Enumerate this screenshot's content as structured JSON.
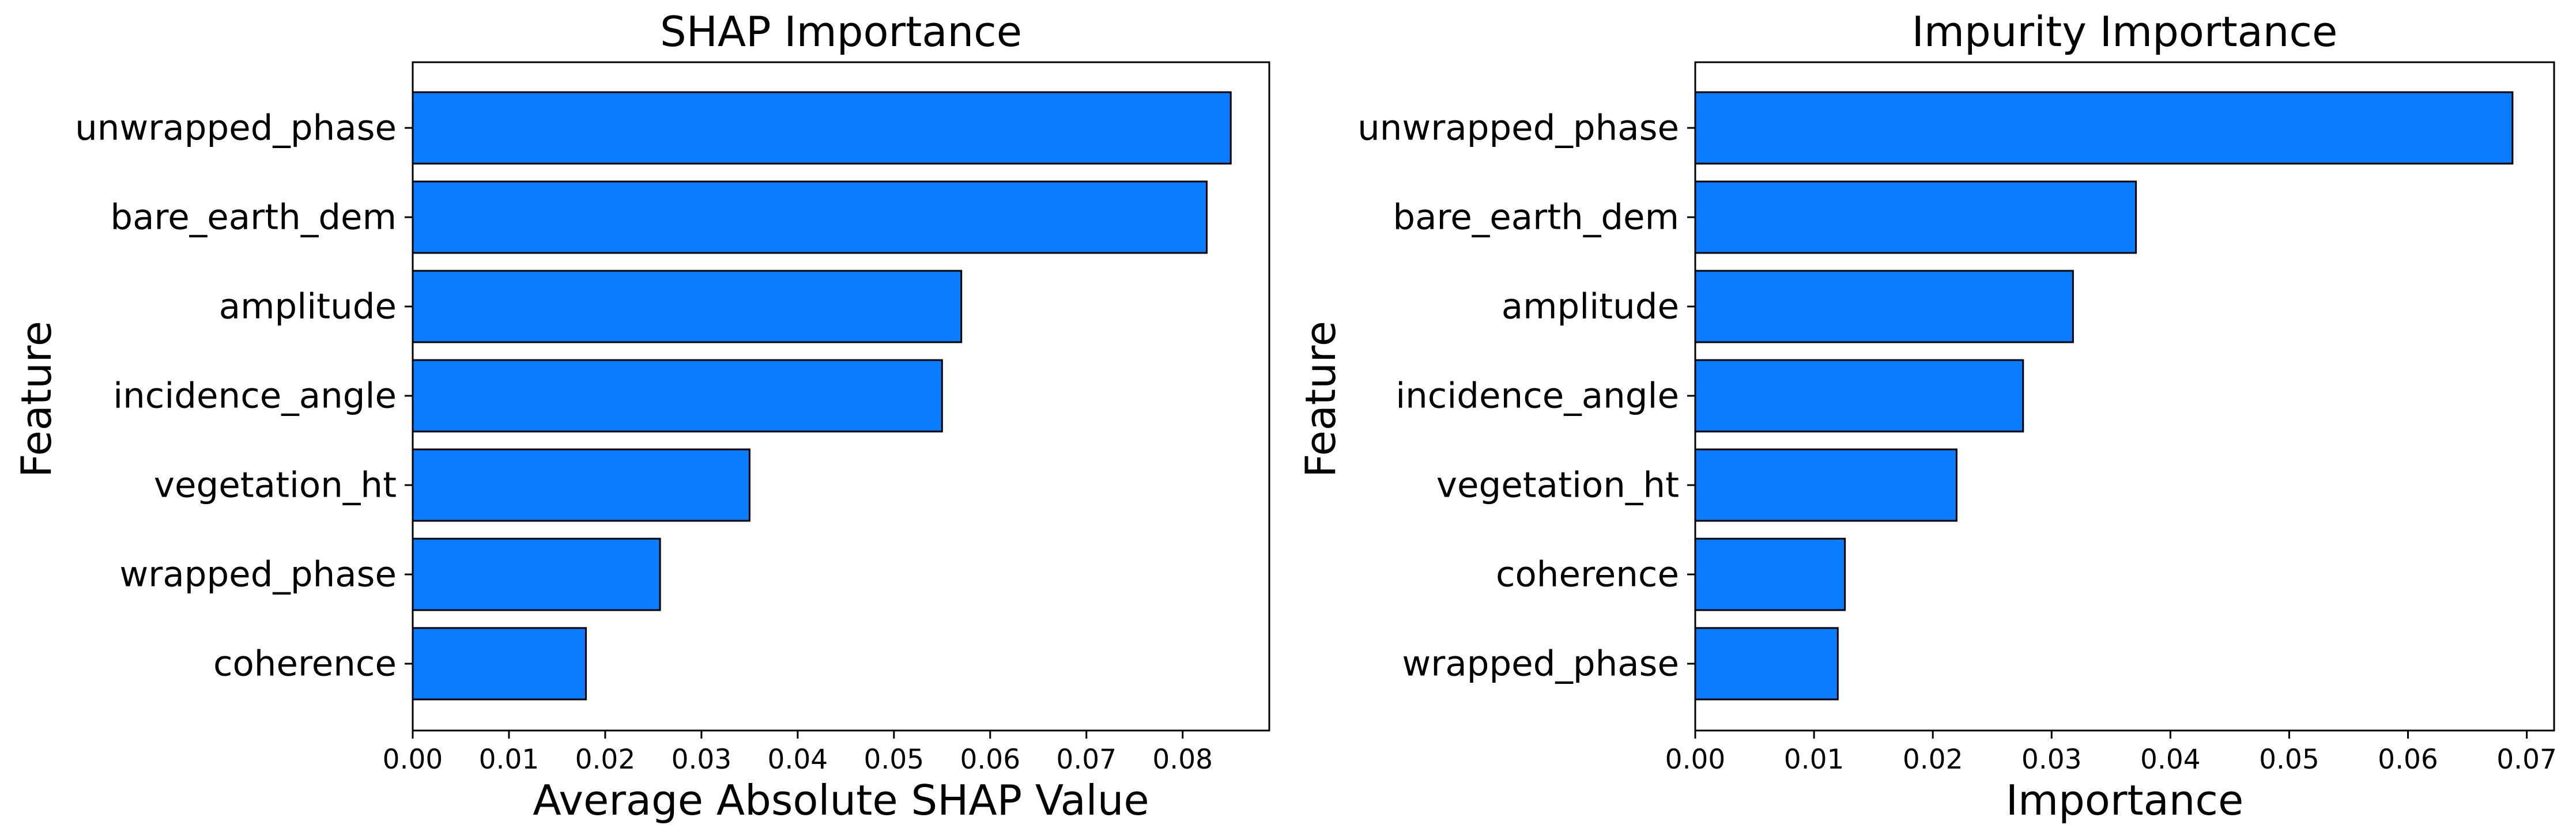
{
  "chart_data": [
    {
      "type": "bar",
      "orientation": "horizontal",
      "title": "SHAP Importance",
      "xlabel": "Average Absolute SHAP Value",
      "ylabel": "Feature",
      "categories": [
        "unwrapped_phase",
        "bare_earth_dem",
        "amplitude",
        "incidence_angle",
        "vegetation_ht",
        "wrapped_phase",
        "coherence"
      ],
      "values": [
        0.085,
        0.0825,
        0.057,
        0.055,
        0.035,
        0.0257,
        0.018
      ],
      "xlim": [
        0,
        0.089
      ],
      "xticks": [
        "0.00",
        "0.01",
        "0.02",
        "0.03",
        "0.04",
        "0.05",
        "0.06",
        "0.07",
        "0.08"
      ],
      "grid": false,
      "bar_color": "#0a7cff",
      "edge_color": "#000000"
    },
    {
      "type": "bar",
      "orientation": "horizontal",
      "title": "Impurity Importance",
      "xlabel": "Importance",
      "ylabel": "Feature",
      "categories": [
        "unwrapped_phase",
        "bare_earth_dem",
        "amplitude",
        "incidence_angle",
        "vegetation_ht",
        "coherence",
        "wrapped_phase"
      ],
      "values": [
        0.0688,
        0.0371,
        0.0318,
        0.0276,
        0.022,
        0.0126,
        0.012
      ],
      "xlim": [
        0,
        0.0723
      ],
      "xticks": [
        "0.00",
        "0.01",
        "0.02",
        "0.03",
        "0.04",
        "0.05",
        "0.06",
        "0.07"
      ],
      "grid": false,
      "bar_color": "#0a7cff",
      "edge_color": "#000000"
    }
  ]
}
